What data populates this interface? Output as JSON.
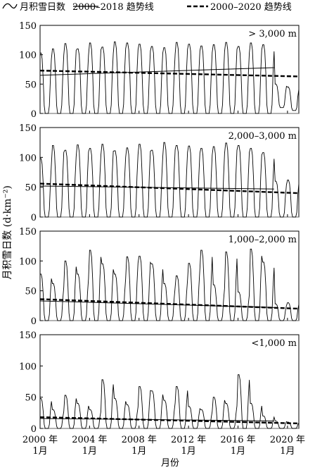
{
  "legend": {
    "monthly_label": "月积雪日数",
    "trend_2018_label": "2000–2018 趋势线",
    "trend_2020_label": "2000–2020 趋势线"
  },
  "axes": {
    "ylabel": "月积雪日数 (d·km⁻²)",
    "xlabel": "月份"
  },
  "chart_data": [
    {
      "type": "line",
      "panel_label": "> 3,000 m",
      "ylim": [
        0,
        150
      ],
      "yticks": [
        0,
        50,
        100,
        150
      ],
      "peaks": [
        103,
        110,
        119,
        110,
        120,
        113,
        122,
        120,
        118,
        114,
        112,
        121,
        118,
        115,
        117,
        121,
        114,
        120,
        117,
        50,
        45
      ],
      "lows": [
        0,
        0,
        0,
        0,
        0,
        0,
        0,
        0,
        0,
        0,
        0,
        0,
        0,
        0,
        0,
        0,
        0,
        0,
        0,
        10,
        5
      ],
      "trend_2000_2018": [
        65,
        78
      ],
      "trend_2000_2020": [
        73,
        63
      ]
    },
    {
      "type": "line",
      "panel_label": "2,000–3,000 m",
      "ylim": [
        0,
        150
      ],
      "yticks": [
        0,
        50,
        100,
        150
      ],
      "peaks": [
        98,
        120,
        112,
        121,
        115,
        122,
        111,
        116,
        122,
        112,
        125,
        120,
        119,
        115,
        118,
        124,
        120,
        115,
        108,
        60,
        62
      ],
      "lows": [
        0,
        0,
        0,
        0,
        0,
        0,
        0,
        0,
        0,
        0,
        0,
        0,
        0,
        0,
        0,
        0,
        0,
        0,
        0,
        0,
        0
      ],
      "trend_2000_2018": [
        52,
        47
      ],
      "trend_2000_2020": [
        56,
        40
      ]
    },
    {
      "type": "line",
      "panel_label": "1,000–2,000 m",
      "ylim": [
        0,
        150
      ],
      "yticks": [
        0,
        50,
        100,
        150
      ],
      "peaks": [
        78,
        62,
        100,
        78,
        118,
        95,
        78,
        107,
        108,
        95,
        62,
        75,
        96,
        118,
        60,
        115,
        48,
        120,
        98,
        28,
        30
      ],
      "lows": [
        0,
        0,
        0,
        0,
        0,
        0,
        0,
        0,
        0,
        0,
        0,
        0,
        0,
        0,
        0,
        0,
        0,
        0,
        0,
        0,
        0
      ],
      "trend_2000_2018": [
        33,
        22
      ],
      "trend_2000_2020": [
        36,
        20
      ]
    },
    {
      "type": "line",
      "panel_label": "<1,000 m",
      "ylim": [
        0,
        150
      ],
      "yticks": [
        0,
        50,
        100,
        150
      ],
      "peaks": [
        48,
        30,
        53,
        40,
        30,
        78,
        48,
        38,
        67,
        60,
        45,
        67,
        35,
        30,
        50,
        40,
        86,
        40,
        20,
        12,
        10
      ],
      "lows": [
        0,
        0,
        0,
        0,
        0,
        0,
        0,
        0,
        0,
        0,
        0,
        0,
        0,
        0,
        0,
        0,
        0,
        0,
        0,
        0,
        0
      ],
      "trend_2000_2018": [
        16,
        12
      ],
      "trend_2000_2020": [
        18,
        8
      ]
    }
  ],
  "x_axis": {
    "start": "2000-01",
    "end": "2020-12",
    "ticks": [
      {
        "year": "2000 年",
        "month": "1月",
        "date": "2000-01"
      },
      {
        "year": "2004 年",
        "month": "1月",
        "date": "2004-01"
      },
      {
        "year": "2008 年",
        "month": "1月",
        "date": "2008-01"
      },
      {
        "year": "2012 年",
        "month": "1月",
        "date": "2012-01"
      },
      {
        "year": "2016 年",
        "month": "1月",
        "date": "2016-01"
      },
      {
        "year": "2020 年",
        "month": "1月",
        "date": "2020-01"
      }
    ]
  }
}
